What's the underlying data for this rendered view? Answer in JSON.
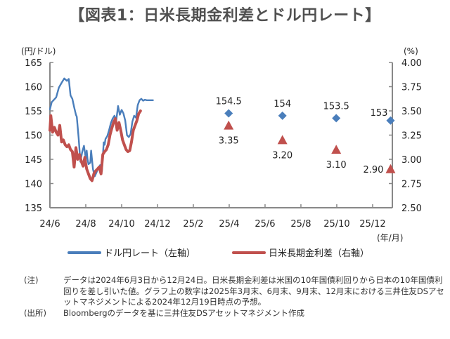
{
  "title": "【図表1：日米長期金利差とドル円レート】",
  "chart_data": {
    "type": "line",
    "title": "【図表1：日米長期金利差とドル円レート】",
    "left_axis": {
      "unit_label": "(円/ドル)",
      "range": [
        135,
        165
      ],
      "ticks": [
        "165",
        "160",
        "155",
        "150",
        "145",
        "140",
        "135"
      ]
    },
    "right_axis": {
      "unit_label": "(%)",
      "range": [
        2.5,
        4.0
      ],
      "ticks": [
        "4.00",
        "3.75",
        "3.50",
        "3.25",
        "3.00",
        "2.75",
        "2.50"
      ]
    },
    "x_axis": {
      "unit_label": "(年/月)",
      "ticks": [
        "24/6",
        "24/8",
        "24/10",
        "24/12",
        "25/2",
        "25/4",
        "25/6",
        "25/8",
        "25/10",
        "25/12"
      ]
    },
    "series": [
      {
        "name": "ドル円レート（左軸）",
        "axis": "left",
        "color": "#4a7ebb",
        "x_months": [
          0.0,
          0.1,
          0.2,
          0.35,
          0.5,
          0.65,
          0.8,
          0.95,
          1.05,
          1.15,
          1.25,
          1.35,
          1.45,
          1.5,
          1.6,
          1.7,
          1.8,
          1.9,
          2.0,
          2.05,
          2.1,
          2.15,
          2.25,
          2.3,
          2.4,
          2.5,
          2.6,
          2.7,
          2.8,
          2.9,
          3.0,
          3.05,
          3.1,
          3.2,
          3.3,
          3.4,
          3.5,
          3.6,
          3.7,
          3.8,
          3.9,
          4.0,
          4.1,
          4.2,
          4.3,
          4.4,
          4.5,
          4.55,
          4.6,
          4.7,
          4.8,
          4.9,
          5.0,
          5.1,
          5.2,
          5.3,
          5.4,
          5.5,
          5.6,
          5.7,
          5.75
        ],
        "values": [
          155.3,
          156.8,
          157.2,
          157.8,
          159.8,
          160.8,
          161.7,
          161.2,
          161.6,
          158.2,
          157.5,
          155.8,
          154.2,
          153.8,
          149.5,
          144.5,
          146.5,
          147.8,
          145.2,
          146.8,
          145.0,
          144.0,
          144.3,
          146.8,
          143.0,
          141.5,
          142.3,
          143.2,
          143.8,
          142.5,
          148.5,
          148.0,
          149.2,
          149.8,
          151.0,
          152.5,
          153.4,
          154.0,
          153.0,
          156.0,
          154.2,
          155.2,
          154.5,
          153.0,
          150.0,
          149.6,
          150.2,
          151.5,
          152.8,
          154.0,
          153.6,
          156.2,
          157.2,
          157.5,
          157.1,
          157.3,
          157.2,
          157.2,
          157.2,
          157.2,
          157.2
        ]
      },
      {
        "name": "日米長期金利差（右軸）",
        "axis": "right",
        "color": "#c0504d",
        "x_months": [
          0.0,
          0.05,
          0.15,
          0.25,
          0.35,
          0.45,
          0.55,
          0.65,
          0.75,
          0.85,
          0.95,
          1.05,
          1.15,
          1.25,
          1.35,
          1.45,
          1.55,
          1.65,
          1.75,
          1.85,
          1.95,
          2.0,
          2.05,
          2.15,
          2.25,
          2.35,
          2.45,
          2.55,
          2.65,
          2.75,
          2.85,
          2.95,
          3.05,
          3.15,
          3.25,
          3.35,
          3.45,
          3.55,
          3.65,
          3.75,
          3.85,
          3.95,
          4.05,
          4.15,
          4.25,
          4.35,
          4.45,
          4.55,
          4.65,
          4.75,
          4.85,
          4.95,
          5.05
        ],
        "values": [
          3.3,
          3.45,
          3.28,
          3.33,
          3.28,
          3.25,
          3.35,
          3.18,
          3.2,
          3.15,
          3.13,
          3.15,
          3.1,
          3.08,
          2.92,
          3.12,
          3.0,
          3.05,
          2.98,
          2.93,
          3.02,
          2.95,
          2.9,
          2.85,
          2.8,
          2.78,
          2.85,
          2.88,
          2.9,
          2.92,
          2.85,
          3.05,
          3.08,
          3.1,
          3.15,
          3.25,
          3.32,
          3.38,
          3.42,
          3.3,
          3.38,
          3.3,
          3.2,
          3.15,
          3.1,
          3.08,
          3.09,
          3.18,
          3.3,
          3.35,
          3.4,
          3.47,
          3.5
        ]
      }
    ],
    "forecasts": {
      "x_months": [
        9.97,
        12.97,
        15.97,
        19.0
      ],
      "usd_jpy": [
        154.5,
        154,
        153.5,
        153
      ],
      "usd_jpy_labels": [
        "154.5",
        "154",
        "153.5",
        "153"
      ],
      "spread": [
        3.35,
        3.2,
        3.1,
        2.9
      ],
      "spread_labels": [
        "3.35",
        "3.20",
        "3.10",
        "2.90"
      ]
    },
    "legend_position": "bottom",
    "grid": false
  },
  "notes": [
    {
      "key": "(注)",
      "text": "データは2024年6月3日から12月24日。日米長期金利差は米国の10年国債利回りから日本の10年国債利回りを差し引いた値。グラフ上の数字は2025年3月末、6月末、9月末、12月末における三井住友DSアセットマネジメントによる2024年12月19日時点の予想。"
    },
    {
      "key": "(出所)",
      "text": "Bloombergのデータを基に三井住友DSアセットマネジメント作成"
    }
  ]
}
